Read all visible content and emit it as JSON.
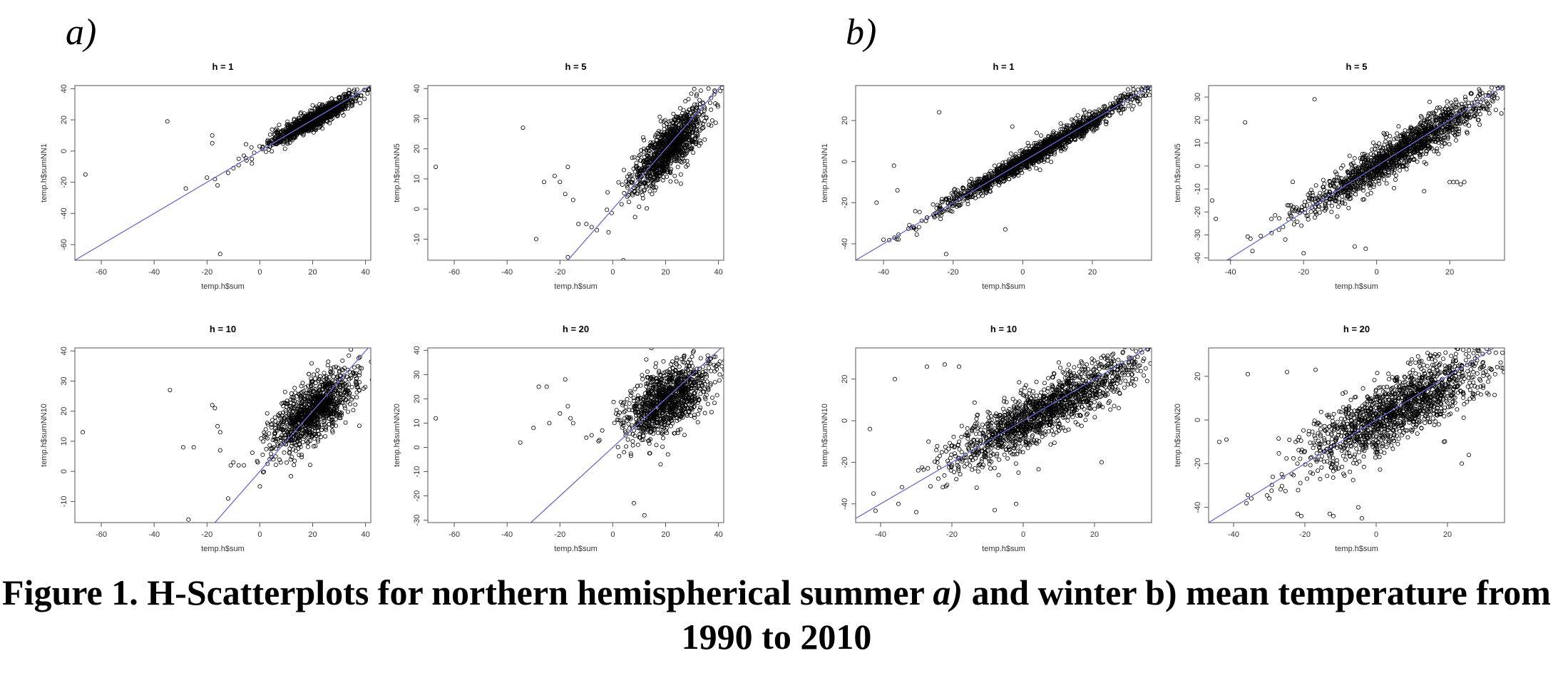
{
  "panels": [
    {
      "label": "a)"
    },
    {
      "label": "b)"
    }
  ],
  "caption": {
    "part1": "Figure 1. H-Scatterplots for northern hemispherical summer ",
    "italic": "a)",
    "part2": " and winter b) mean temperature from 1990 to 2010"
  },
  "chart_data": [
    {
      "type": "scatter",
      "panel": "a)",
      "title": "h = 1",
      "xlabel": "temp.h$sum",
      "ylabel": "temp.h$sumNN1",
      "xlim": [
        -70,
        42
      ],
      "ylim": [
        -70,
        42
      ],
      "xticks": [
        -60,
        -40,
        -20,
        0,
        20,
        40
      ],
      "yticks": [
        -60,
        -40,
        -20,
        0,
        20,
        40
      ],
      "fit_line": {
        "slope": 1,
        "intercept": 0,
        "color": "#6b6bd6"
      },
      "cluster": {
        "cx": 20,
        "cy": 20,
        "sx": 8,
        "sy": 8,
        "rho": 0.93,
        "n": 1100
      },
      "outliers": [
        [
          -66,
          -15
        ],
        [
          -35,
          19
        ],
        [
          -28,
          -24
        ],
        [
          -20,
          -17
        ],
        [
          -18,
          10
        ],
        [
          -18,
          5
        ],
        [
          -17,
          -18
        ],
        [
          -15,
          -66
        ],
        [
          -10,
          -11
        ],
        [
          -8,
          -9
        ],
        [
          -5,
          -6
        ],
        [
          -12,
          -14
        ],
        [
          -16,
          -22
        ],
        [
          -6,
          -3
        ],
        [
          -3,
          -8
        ]
      ]
    },
    {
      "type": "scatter",
      "panel": "a)",
      "title": "h = 5",
      "xlabel": "temp.h$sum",
      "ylabel": "temp.h$sumNN5",
      "xlim": [
        -70,
        42
      ],
      "ylim": [
        -17,
        41
      ],
      "xticks": [
        -60,
        -40,
        -20,
        0,
        20,
        40
      ],
      "yticks": [
        -10,
        0,
        10,
        20,
        30,
        40
      ],
      "fit_line": {
        "slope": 1,
        "intercept": 0,
        "color": "#6b6bd6"
      },
      "cluster": {
        "cx": 21,
        "cy": 20,
        "sx": 7,
        "sy": 7,
        "rho": 0.8,
        "n": 1100
      },
      "outliers": [
        [
          -67,
          14
        ],
        [
          -34,
          27
        ],
        [
          -29,
          -10
        ],
        [
          -26,
          9
        ],
        [
          -22,
          11
        ],
        [
          -18,
          5
        ],
        [
          -17,
          14
        ],
        [
          -15,
          3
        ],
        [
          -13,
          -5
        ],
        [
          -10,
          -5
        ],
        [
          -8,
          -6
        ],
        [
          -6,
          -7
        ],
        [
          -17,
          -16
        ],
        [
          4,
          -17
        ],
        [
          -20,
          9
        ]
      ]
    },
    {
      "type": "scatter",
      "panel": "a)",
      "title": "h = 10",
      "xlabel": "temp.h$sum",
      "ylabel": "temp.h$sumNN10",
      "xlim": [
        -70,
        42
      ],
      "ylim": [
        -17,
        41
      ],
      "xticks": [
        -60,
        -40,
        -20,
        0,
        20,
        40
      ],
      "yticks": [
        -10,
        0,
        10,
        20,
        30,
        40
      ],
      "fit_line": {
        "slope": 1,
        "intercept": 0,
        "color": "#6b6bd6"
      },
      "cluster": {
        "cx": 20,
        "cy": 20,
        "sx": 8,
        "sy": 7,
        "rho": 0.7,
        "n": 1100
      },
      "outliers": [
        [
          -67,
          13
        ],
        [
          -34,
          27
        ],
        [
          -29,
          8
        ],
        [
          -27,
          -16
        ],
        [
          -25,
          8
        ],
        [
          -18,
          22
        ],
        [
          -17,
          21
        ],
        [
          -16,
          15
        ],
        [
          -15,
          13
        ],
        [
          -15,
          7
        ],
        [
          -11,
          2
        ],
        [
          -10,
          3
        ],
        [
          -8,
          2
        ],
        [
          -6,
          2
        ],
        [
          -12,
          -9
        ],
        [
          0,
          -5
        ]
      ]
    },
    {
      "type": "scatter",
      "panel": "a)",
      "title": "h = 20",
      "xlabel": "temp.h$sum",
      "ylabel": "temp.h$sumNN20",
      "xlim": [
        -70,
        42
      ],
      "ylim": [
        -31,
        41
      ],
      "xticks": [
        -60,
        -40,
        -20,
        0,
        20,
        40
      ],
      "yticks": [
        -30,
        -20,
        -10,
        0,
        10,
        20,
        30,
        40
      ],
      "fit_line": {
        "slope": 1,
        "intercept": 0,
        "color": "#6b6bd6"
      },
      "cluster": {
        "cx": 20,
        "cy": 19,
        "sx": 8,
        "sy": 8,
        "rho": 0.55,
        "n": 1100
      },
      "outliers": [
        [
          -67,
          12
        ],
        [
          -35,
          2
        ],
        [
          -30,
          8
        ],
        [
          -28,
          25
        ],
        [
          -25,
          25
        ],
        [
          -24,
          10
        ],
        [
          -18,
          28
        ],
        [
          -17,
          17
        ],
        [
          -16,
          12
        ],
        [
          -15,
          10
        ],
        [
          -10,
          4
        ],
        [
          -8,
          5
        ],
        [
          -5,
          3
        ],
        [
          -4,
          7
        ],
        [
          8,
          -23
        ],
        [
          12,
          -28
        ],
        [
          -20,
          14
        ]
      ]
    },
    {
      "type": "scatter",
      "panel": "b)",
      "title": "h = 1",
      "xlabel": "temp.h$sum",
      "ylabel": "temp.h$sumNN1",
      "xlim": [
        -48,
        37
      ],
      "ylim": [
        -48,
        37
      ],
      "xticks": [
        -40,
        -20,
        0,
        20
      ],
      "yticks": [
        -40,
        -20,
        0,
        20
      ],
      "fit_line": {
        "slope": 1,
        "intercept": 0,
        "color": "#6b6bd6"
      },
      "cluster": {
        "cx": 4,
        "cy": 4,
        "sx": 14,
        "sy": 14,
        "rho": 0.985,
        "n": 1600
      },
      "outliers": [
        [
          -42,
          -20
        ],
        [
          -40,
          -38
        ],
        [
          -37,
          -2
        ],
        [
          -36,
          -14
        ],
        [
          -24,
          24
        ],
        [
          -22,
          -45
        ],
        [
          -5,
          -33
        ],
        [
          -3,
          17
        ],
        [
          4,
          14
        ]
      ]
    },
    {
      "type": "scatter",
      "panel": "b)",
      "title": "h = 5",
      "xlabel": "temp.h$sum",
      "ylabel": "temp.h$sumNN5",
      "xlim": [
        -46,
        35
      ],
      "ylim": [
        -41,
        35
      ],
      "xticks": [
        -40,
        -20,
        0,
        20
      ],
      "yticks": [
        -40,
        -30,
        -20,
        -10,
        0,
        10,
        20,
        30
      ],
      "fit_line": {
        "slope": 1,
        "intercept": 0,
        "color": "#6b6bd6"
      },
      "cluster": {
        "cx": 6,
        "cy": 6,
        "sx": 13,
        "sy": 13,
        "rho": 0.95,
        "n": 1500
      },
      "outliers": [
        [
          -45,
          -15
        ],
        [
          -44,
          -23
        ],
        [
          -36,
          19
        ],
        [
          -34,
          -37
        ],
        [
          -20,
          -38
        ],
        [
          -17,
          29
        ],
        [
          -6,
          -35
        ],
        [
          -3,
          -36
        ],
        [
          20,
          -7
        ],
        [
          21,
          -7
        ],
        [
          22,
          -7
        ],
        [
          23,
          -8
        ],
        [
          24,
          -7
        ],
        [
          13,
          -11
        ],
        [
          -25,
          -32
        ]
      ]
    },
    {
      "type": "scatter",
      "panel": "b)",
      "title": "h = 10",
      "xlabel": "temp.h$sum",
      "ylabel": "temp.h$sumNN10",
      "xlim": [
        -47,
        36
      ],
      "ylim": [
        -49,
        35
      ],
      "xticks": [
        -40,
        -20,
        0,
        20
      ],
      "yticks": [
        -40,
        -20,
        0,
        20
      ],
      "fit_line": {
        "slope": 1,
        "intercept": 0,
        "color": "#6b6bd6"
      },
      "cluster": {
        "cx": 6,
        "cy": 5,
        "sx": 13,
        "sy": 13,
        "rho": 0.87,
        "n": 1500
      },
      "outliers": [
        [
          -43,
          -4
        ],
        [
          -42,
          -35
        ],
        [
          -36,
          20
        ],
        [
          -35,
          -40
        ],
        [
          -34,
          -32
        ],
        [
          -27,
          26
        ],
        [
          -22,
          27
        ],
        [
          -18,
          26
        ],
        [
          -8,
          -43
        ],
        [
          -2,
          -40
        ],
        [
          22,
          -20
        ],
        [
          10,
          28
        ],
        [
          -30,
          -44
        ]
      ]
    },
    {
      "type": "scatter",
      "panel": "b)",
      "title": "h = 20",
      "xlabel": "temp.h$sum",
      "ylabel": "temp.h$sumNN20",
      "xlim": [
        -47,
        36
      ],
      "ylim": [
        -47,
        33
      ],
      "xticks": [
        -40,
        -20,
        0,
        20
      ],
      "yticks": [
        -40,
        -20,
        0,
        20
      ],
      "fit_line": {
        "slope": 1,
        "intercept": 0,
        "color": "#6b6bd6"
      },
      "cluster": {
        "cx": 6,
        "cy": 5,
        "sx": 13,
        "sy": 13,
        "rho": 0.8,
        "n": 1500
      },
      "outliers": [
        [
          -44,
          -10
        ],
        [
          -42,
          -9
        ],
        [
          -36,
          21
        ],
        [
          -35,
          -36
        ],
        [
          -29,
          -26
        ],
        [
          -22,
          -43
        ],
        [
          -21,
          -44
        ],
        [
          -13,
          -43
        ],
        [
          -12,
          -44
        ],
        [
          -5,
          -40
        ],
        [
          -4,
          -45
        ],
        [
          19,
          -10
        ],
        [
          24,
          -20
        ],
        [
          26,
          -16
        ],
        [
          -25,
          22
        ],
        [
          -17,
          23
        ]
      ]
    }
  ]
}
